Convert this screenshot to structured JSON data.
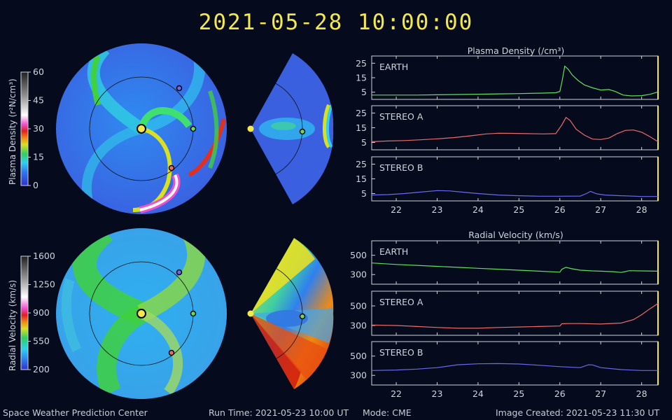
{
  "header": {
    "timestamp": "2021-05-28 10:00:00"
  },
  "footer": {
    "org": "Space Weather Prediction Center",
    "run_time": "Run Time: 2021-05-23 10:00 UT",
    "mode": "Mode: CME",
    "created": "Image Created: 2021-05-23 11:30 UT"
  },
  "colors": {
    "earth": "#5fe05f",
    "stereo_a": "#f06a6a",
    "stereo_b": "#6a6af0",
    "accent": "#f4e94a",
    "background": "#050b1c"
  },
  "colorbars": {
    "density": {
      "label": "Plasma Density (r²N/cm³)",
      "ticks": [
        "60",
        "45",
        "30",
        "15",
        "0"
      ]
    },
    "velocity": {
      "label": "Radial Velocity (km/s)",
      "ticks": [
        "1600",
        "1250",
        "900",
        "550",
        "200"
      ]
    }
  },
  "chart_data": [
    {
      "type": "line",
      "title": "Plasma Density (/cm³)",
      "x_ticks": [
        "22",
        "23",
        "24",
        "25",
        "26",
        "27",
        "28"
      ],
      "xlim": [
        21.4,
        28.4
      ],
      "ylim": [
        0,
        30
      ],
      "y_ticks": [
        "25",
        "15",
        "5"
      ],
      "series": [
        {
          "name": "EARTH",
          "color": "#5fe05f",
          "x": [
            21.4,
            22,
            22.5,
            23,
            23.5,
            24,
            24.5,
            25,
            25.5,
            25.9,
            26.0,
            26.05,
            26.12,
            26.2,
            26.3,
            26.45,
            26.6,
            26.8,
            27.0,
            27.2,
            27.35,
            27.55,
            27.75,
            28.0,
            28.2,
            28.4
          ],
          "values": [
            3,
            3,
            3,
            3.2,
            3.4,
            3.6,
            3.8,
            4,
            4.3,
            4.6,
            5.5,
            12,
            23,
            21,
            17,
            13,
            10,
            8,
            6.5,
            6.8,
            5.5,
            3,
            2.4,
            2.6,
            3.5,
            5.2
          ]
        },
        {
          "name": "STEREO A",
          "color": "#f06a6a",
          "x": [
            21.4,
            21.8,
            22.2,
            22.6,
            23,
            23.4,
            23.8,
            24.2,
            24.5,
            24.8,
            25.2,
            25.6,
            25.9,
            26.05,
            26.15,
            26.25,
            26.4,
            26.6,
            26.8,
            27.0,
            27.2,
            27.4,
            27.6,
            27.8,
            28.0,
            28.2,
            28.4
          ],
          "values": [
            5.5,
            6,
            6.3,
            6.8,
            7.5,
            8.3,
            9.5,
            10.8,
            11.3,
            11.2,
            11,
            10.8,
            11,
            17,
            22,
            20,
            14,
            10,
            7.3,
            7,
            8,
            11,
            13.2,
            13.5,
            12,
            9,
            5.5
          ]
        },
        {
          "name": "STEREO B",
          "color": "#6a6af0",
          "x": [
            21.4,
            21.8,
            22.2,
            22.6,
            23,
            23.3,
            23.6,
            24,
            24.5,
            25,
            25.5,
            26,
            26.5,
            26.65,
            26.75,
            26.9,
            27.1,
            27.5,
            28,
            28.4
          ],
          "values": [
            4,
            4.3,
            5,
            6,
            7,
            6.8,
            6,
            5,
            4,
            3.5,
            3.2,
            3.2,
            3.3,
            5,
            6.5,
            4.8,
            4,
            3.5,
            3,
            3
          ]
        }
      ]
    },
    {
      "type": "line",
      "title": "Radial Velocity (km/s)",
      "x_ticks": [
        "22",
        "23",
        "24",
        "25",
        "26",
        "27",
        "28"
      ],
      "xlim": [
        21.4,
        28.4
      ],
      "ylim": [
        200,
        650
      ],
      "y_ticks": [
        "500",
        "300"
      ],
      "series": [
        {
          "name": "EARTH",
          "color": "#5fe05f",
          "x": [
            21.4,
            22,
            22.5,
            23,
            23.5,
            24,
            24.5,
            25,
            25.5,
            26.0,
            26.05,
            26.15,
            26.3,
            26.5,
            26.8,
            27.0,
            27.3,
            27.5,
            27.7,
            28.0,
            28.4
          ],
          "values": [
            420,
            405,
            395,
            385,
            375,
            365,
            355,
            345,
            335,
            325,
            355,
            375,
            360,
            345,
            338,
            335,
            330,
            322,
            340,
            338,
            335
          ]
        },
        {
          "name": "STEREO A",
          "color": "#f06a6a",
          "x": [
            21.4,
            22,
            22.5,
            23,
            23.5,
            24,
            24.5,
            25,
            25.5,
            26.0,
            26.05,
            26.2,
            26.5,
            27,
            27.5,
            27.8,
            28.0,
            28.2,
            28.4
          ],
          "values": [
            305,
            300,
            290,
            280,
            272,
            272,
            280,
            285,
            290,
            295,
            318,
            320,
            320,
            315,
            325,
            360,
            410,
            470,
            525
          ]
        },
        {
          "name": "STEREO B",
          "color": "#6a6af0",
          "x": [
            21.4,
            22,
            22.5,
            23,
            23.5,
            24,
            24.5,
            25,
            25.5,
            26,
            26.5,
            26.7,
            26.8,
            27,
            27.5,
            28,
            28.4
          ],
          "values": [
            350,
            355,
            365,
            380,
            410,
            420,
            422,
            418,
            405,
            390,
            380,
            410,
            408,
            380,
            360,
            350,
            350
          ]
        }
      ]
    }
  ]
}
